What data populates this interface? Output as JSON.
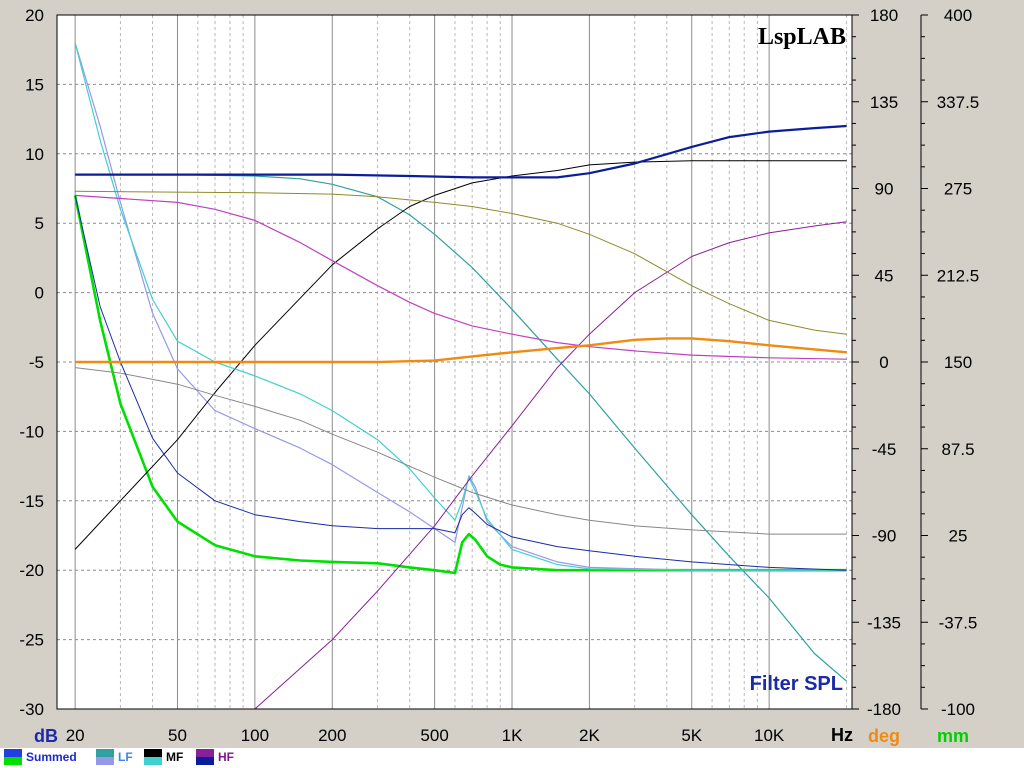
{
  "chart_data": {
    "type": "line",
    "title": "Filter SPL",
    "brand": "LspLAB",
    "x_unit": "Hz",
    "x_scale": "log",
    "xlim": [
      17,
      21000
    ],
    "x_ticks": [
      {
        "v": 20,
        "label": "20"
      },
      {
        "v": 50,
        "label": "50"
      },
      {
        "v": 100,
        "label": "100"
      },
      {
        "v": 200,
        "label": "200"
      },
      {
        "v": 500,
        "label": "500"
      },
      {
        "v": 1000,
        "label": "1K"
      },
      {
        "v": 2000,
        "label": "2K"
      },
      {
        "v": 5000,
        "label": "5K"
      },
      {
        "v": 10000,
        "label": "10K"
      }
    ],
    "y_left": {
      "unit": "dB",
      "range": [
        -30,
        20
      ],
      "ticks": [
        "20",
        "15",
        "10",
        "5",
        "0",
        "-5",
        "-10",
        "-15",
        "-20",
        "-25",
        "-30"
      ]
    },
    "y_right_phase": {
      "unit": "deg",
      "range": [
        -180,
        180
      ],
      "ticks": [
        "180",
        "135",
        "90",
        "45",
        "0",
        "-45",
        "-90",
        "-135",
        "-180"
      ]
    },
    "y_right_delay": {
      "unit": "mm",
      "range": [
        -100,
        400
      ],
      "ticks": [
        "400",
        "337.5",
        "275",
        "212.5",
        "150",
        "87.5",
        "25",
        "-37.5",
        "-100"
      ]
    },
    "grid": true,
    "series": [
      {
        "name": "Summed",
        "color": "#00e000",
        "width": 2.6,
        "points": [
          [
            20,
            7
          ],
          [
            25,
            -2
          ],
          [
            30,
            -8
          ],
          [
            40,
            -14
          ],
          [
            50,
            -16.5
          ],
          [
            70,
            -18.2
          ],
          [
            100,
            -19
          ],
          [
            150,
            -19.3
          ],
          [
            200,
            -19.4
          ],
          [
            300,
            -19.5
          ],
          [
            400,
            -19.8
          ],
          [
            500,
            -20
          ],
          [
            600,
            -20.2
          ],
          [
            640,
            -18
          ],
          [
            680,
            -17.4
          ],
          [
            720,
            -17.8
          ],
          [
            800,
            -19
          ],
          [
            900,
            -19.6
          ],
          [
            1000,
            -19.8
          ],
          [
            1500,
            -20
          ],
          [
            3000,
            -20
          ],
          [
            10000,
            -20
          ],
          [
            20000,
            -20
          ]
        ]
      },
      {
        "name": "LF",
        "color": "#30a0a0",
        "width": 1.2,
        "points": [
          [
            20,
            8.5
          ],
          [
            50,
            8.5
          ],
          [
            100,
            8.4
          ],
          [
            150,
            8.2
          ],
          [
            200,
            7.8
          ],
          [
            300,
            6.9
          ],
          [
            400,
            5.6
          ],
          [
            500,
            4.2
          ],
          [
            700,
            1.8
          ],
          [
            1000,
            -1.2
          ],
          [
            1500,
            -4.8
          ],
          [
            2000,
            -7.3
          ],
          [
            3000,
            -11.2
          ],
          [
            5000,
            -16
          ],
          [
            7000,
            -19
          ],
          [
            10000,
            -22
          ],
          [
            15000,
            -26
          ],
          [
            20000,
            -28
          ]
        ]
      },
      {
        "name": "LF",
        "color": "#9898e8",
        "width": 1.2,
        "points": [
          [
            20,
            18
          ],
          [
            25,
            12
          ],
          [
            30,
            6.5
          ],
          [
            40,
            -1.5
          ],
          [
            50,
            -5.5
          ],
          [
            70,
            -8.5
          ],
          [
            100,
            -9.8
          ],
          [
            150,
            -11.2
          ],
          [
            200,
            -12.4
          ],
          [
            300,
            -14.4
          ],
          [
            400,
            -15.8
          ],
          [
            500,
            -17
          ],
          [
            600,
            -18
          ],
          [
            640,
            -15.5
          ],
          [
            680,
            -13.2
          ],
          [
            720,
            -14
          ],
          [
            800,
            -16.5
          ],
          [
            1000,
            -18.3
          ],
          [
            1500,
            -19.4
          ],
          [
            2000,
            -19.8
          ],
          [
            5000,
            -20
          ],
          [
            20000,
            -20
          ]
        ]
      },
      {
        "name": "MF",
        "color": "#000000",
        "width": 1,
        "points": [
          [
            20,
            -18.5
          ],
          [
            30,
            -15
          ],
          [
            50,
            -10.6
          ],
          [
            70,
            -7.2
          ],
          [
            100,
            -3.8
          ],
          [
            150,
            -0.4
          ],
          [
            200,
            2
          ],
          [
            300,
            4.6
          ],
          [
            400,
            6.2
          ],
          [
            500,
            7
          ],
          [
            700,
            7.9
          ],
          [
            1000,
            8.4
          ],
          [
            1500,
            8.8
          ],
          [
            2000,
            9.2
          ],
          [
            3000,
            9.4
          ],
          [
            5000,
            9.5
          ],
          [
            10000,
            9.5
          ],
          [
            20000,
            9.5
          ]
        ]
      },
      {
        "name": "MF",
        "color": "#40d0d0",
        "width": 1.2,
        "points": [
          [
            20,
            18
          ],
          [
            25,
            11
          ],
          [
            30,
            6
          ],
          [
            40,
            -0.5
          ],
          [
            50,
            -3.5
          ],
          [
            70,
            -5
          ],
          [
            100,
            -6
          ],
          [
            150,
            -7.3
          ],
          [
            200,
            -8.5
          ],
          [
            300,
            -10.6
          ],
          [
            400,
            -12.7
          ],
          [
            500,
            -14.8
          ],
          [
            600,
            -16.4
          ],
          [
            640,
            -15
          ],
          [
            680,
            -13.3
          ],
          [
            720,
            -14.3
          ],
          [
            800,
            -16.3
          ],
          [
            1000,
            -18.5
          ],
          [
            1500,
            -19.6
          ],
          [
            2000,
            -19.9
          ],
          [
            5000,
            -20
          ],
          [
            20000,
            -20
          ]
        ]
      },
      {
        "name": "HF",
        "color": "#8a1f9a",
        "width": 1,
        "points": [
          [
            100,
            -30
          ],
          [
            200,
            -25
          ],
          [
            300,
            -21.5
          ],
          [
            500,
            -16.8
          ],
          [
            700,
            -13.2
          ],
          [
            1000,
            -9.6
          ],
          [
            1500,
            -5.4
          ],
          [
            2000,
            -3
          ],
          [
            3000,
            0
          ],
          [
            5000,
            2.6
          ],
          [
            7000,
            3.6
          ],
          [
            10000,
            4.3
          ],
          [
            15000,
            4.8
          ],
          [
            20000,
            5.1
          ]
        ]
      },
      {
        "name": "HF",
        "color": "#0a1e9a",
        "width": 2.2,
        "points": [
          [
            20,
            8.5
          ],
          [
            100,
            8.5
          ],
          [
            200,
            8.5
          ],
          [
            400,
            8.4
          ],
          [
            700,
            8.3
          ],
          [
            1000,
            8.3
          ],
          [
            1500,
            8.3
          ],
          [
            2000,
            8.6
          ],
          [
            3000,
            9.3
          ],
          [
            5000,
            10.5
          ],
          [
            7000,
            11.2
          ],
          [
            10000,
            11.6
          ],
          [
            15000,
            11.85
          ],
          [
            20000,
            12
          ]
        ]
      },
      {
        "name": "",
        "color": "#888888",
        "width": 1,
        "points": [
          [
            20,
            -5.4
          ],
          [
            30,
            -5.8
          ],
          [
            50,
            -6.6
          ],
          [
            70,
            -7.4
          ],
          [
            100,
            -8.2
          ],
          [
            150,
            -9.2
          ],
          [
            200,
            -10.2
          ],
          [
            300,
            -11.5
          ],
          [
            500,
            -13.3
          ],
          [
            700,
            -14.4
          ],
          [
            1000,
            -15.3
          ],
          [
            1500,
            -16
          ],
          [
            2000,
            -16.4
          ],
          [
            3000,
            -16.8
          ],
          [
            5000,
            -17.1
          ],
          [
            10000,
            -17.4
          ],
          [
            20000,
            -17.4
          ]
        ]
      },
      {
        "name": "",
        "color": "#1a2aa8",
        "width": 1,
        "points": [
          [
            20,
            7
          ],
          [
            25,
            -1
          ],
          [
            30,
            -5
          ],
          [
            40,
            -10.5
          ],
          [
            50,
            -13
          ],
          [
            70,
            -15
          ],
          [
            100,
            -16
          ],
          [
            150,
            -16.5
          ],
          [
            200,
            -16.8
          ],
          [
            300,
            -17
          ],
          [
            500,
            -17
          ],
          [
            600,
            -17.3
          ],
          [
            640,
            -16
          ],
          [
            680,
            -15.5
          ],
          [
            720,
            -15.9
          ],
          [
            800,
            -16.7
          ],
          [
            1000,
            -17.6
          ],
          [
            1500,
            -18.3
          ],
          [
            2000,
            -18.6
          ],
          [
            3000,
            -19
          ],
          [
            5000,
            -19.4
          ],
          [
            10000,
            -19.8
          ],
          [
            20000,
            -20
          ]
        ]
      },
      {
        "name": "",
        "color": "#c040c0",
        "width": 1.2,
        "points": [
          [
            20,
            7
          ],
          [
            50,
            6.5
          ],
          [
            70,
            6
          ],
          [
            100,
            5.2
          ],
          [
            150,
            3.6
          ],
          [
            200,
            2.3
          ],
          [
            300,
            0.5
          ],
          [
            400,
            -0.7
          ],
          [
            500,
            -1.5
          ],
          [
            700,
            -2.4
          ],
          [
            1000,
            -3
          ],
          [
            1500,
            -3.6
          ],
          [
            2000,
            -3.9
          ],
          [
            3000,
            -4.2
          ],
          [
            5000,
            -4.5
          ],
          [
            10000,
            -4.7
          ],
          [
            20000,
            -4.8
          ]
        ]
      },
      {
        "name": "",
        "color": "#8c8c2a",
        "width": 1,
        "points": [
          [
            20,
            7.3
          ],
          [
            100,
            7.2
          ],
          [
            200,
            7.1
          ],
          [
            300,
            6.9
          ],
          [
            500,
            6.5
          ],
          [
            700,
            6.2
          ],
          [
            1000,
            5.7
          ],
          [
            1500,
            5
          ],
          [
            2000,
            4.2
          ],
          [
            3000,
            2.8
          ],
          [
            5000,
            0.5
          ],
          [
            7000,
            -0.8
          ],
          [
            10000,
            -2
          ],
          [
            15000,
            -2.7
          ],
          [
            20000,
            -3
          ]
        ]
      },
      {
        "name": "",
        "color": "#f08a10",
        "width": 2.4,
        "points": [
          [
            20,
            -5
          ],
          [
            100,
            -5
          ],
          [
            300,
            -5
          ],
          [
            500,
            -4.9
          ],
          [
            700,
            -4.6
          ],
          [
            1000,
            -4.3
          ],
          [
            1500,
            -4
          ],
          [
            2000,
            -3.8
          ],
          [
            3000,
            -3.4
          ],
          [
            4000,
            -3.3
          ],
          [
            5000,
            -3.3
          ],
          [
            7000,
            -3.5
          ],
          [
            10000,
            -3.8
          ],
          [
            20000,
            -4.3
          ]
        ]
      }
    ]
  },
  "legend": [
    {
      "label": "Summed",
      "top": "#2040e0",
      "bottom": "#00e000",
      "text_color": "#1a2ad0"
    },
    {
      "label": "LF",
      "top": "#30a0a0",
      "bottom": "#9898e8",
      "text_color": "#3a8ae0"
    },
    {
      "label": "MF",
      "top": "#000000",
      "bottom": "#40d0d0",
      "text_color": "#000000"
    },
    {
      "label": "HF",
      "top": "#8a1f9a",
      "bottom": "#0a1e9a",
      "text_color": "#7a1a8a"
    }
  ],
  "colors": {
    "unit_db": "#1a2aa8",
    "unit_hz": "#000000",
    "unit_deg": "#f08a10",
    "unit_mm": "#00d000",
    "title": "#1a2aa8"
  }
}
